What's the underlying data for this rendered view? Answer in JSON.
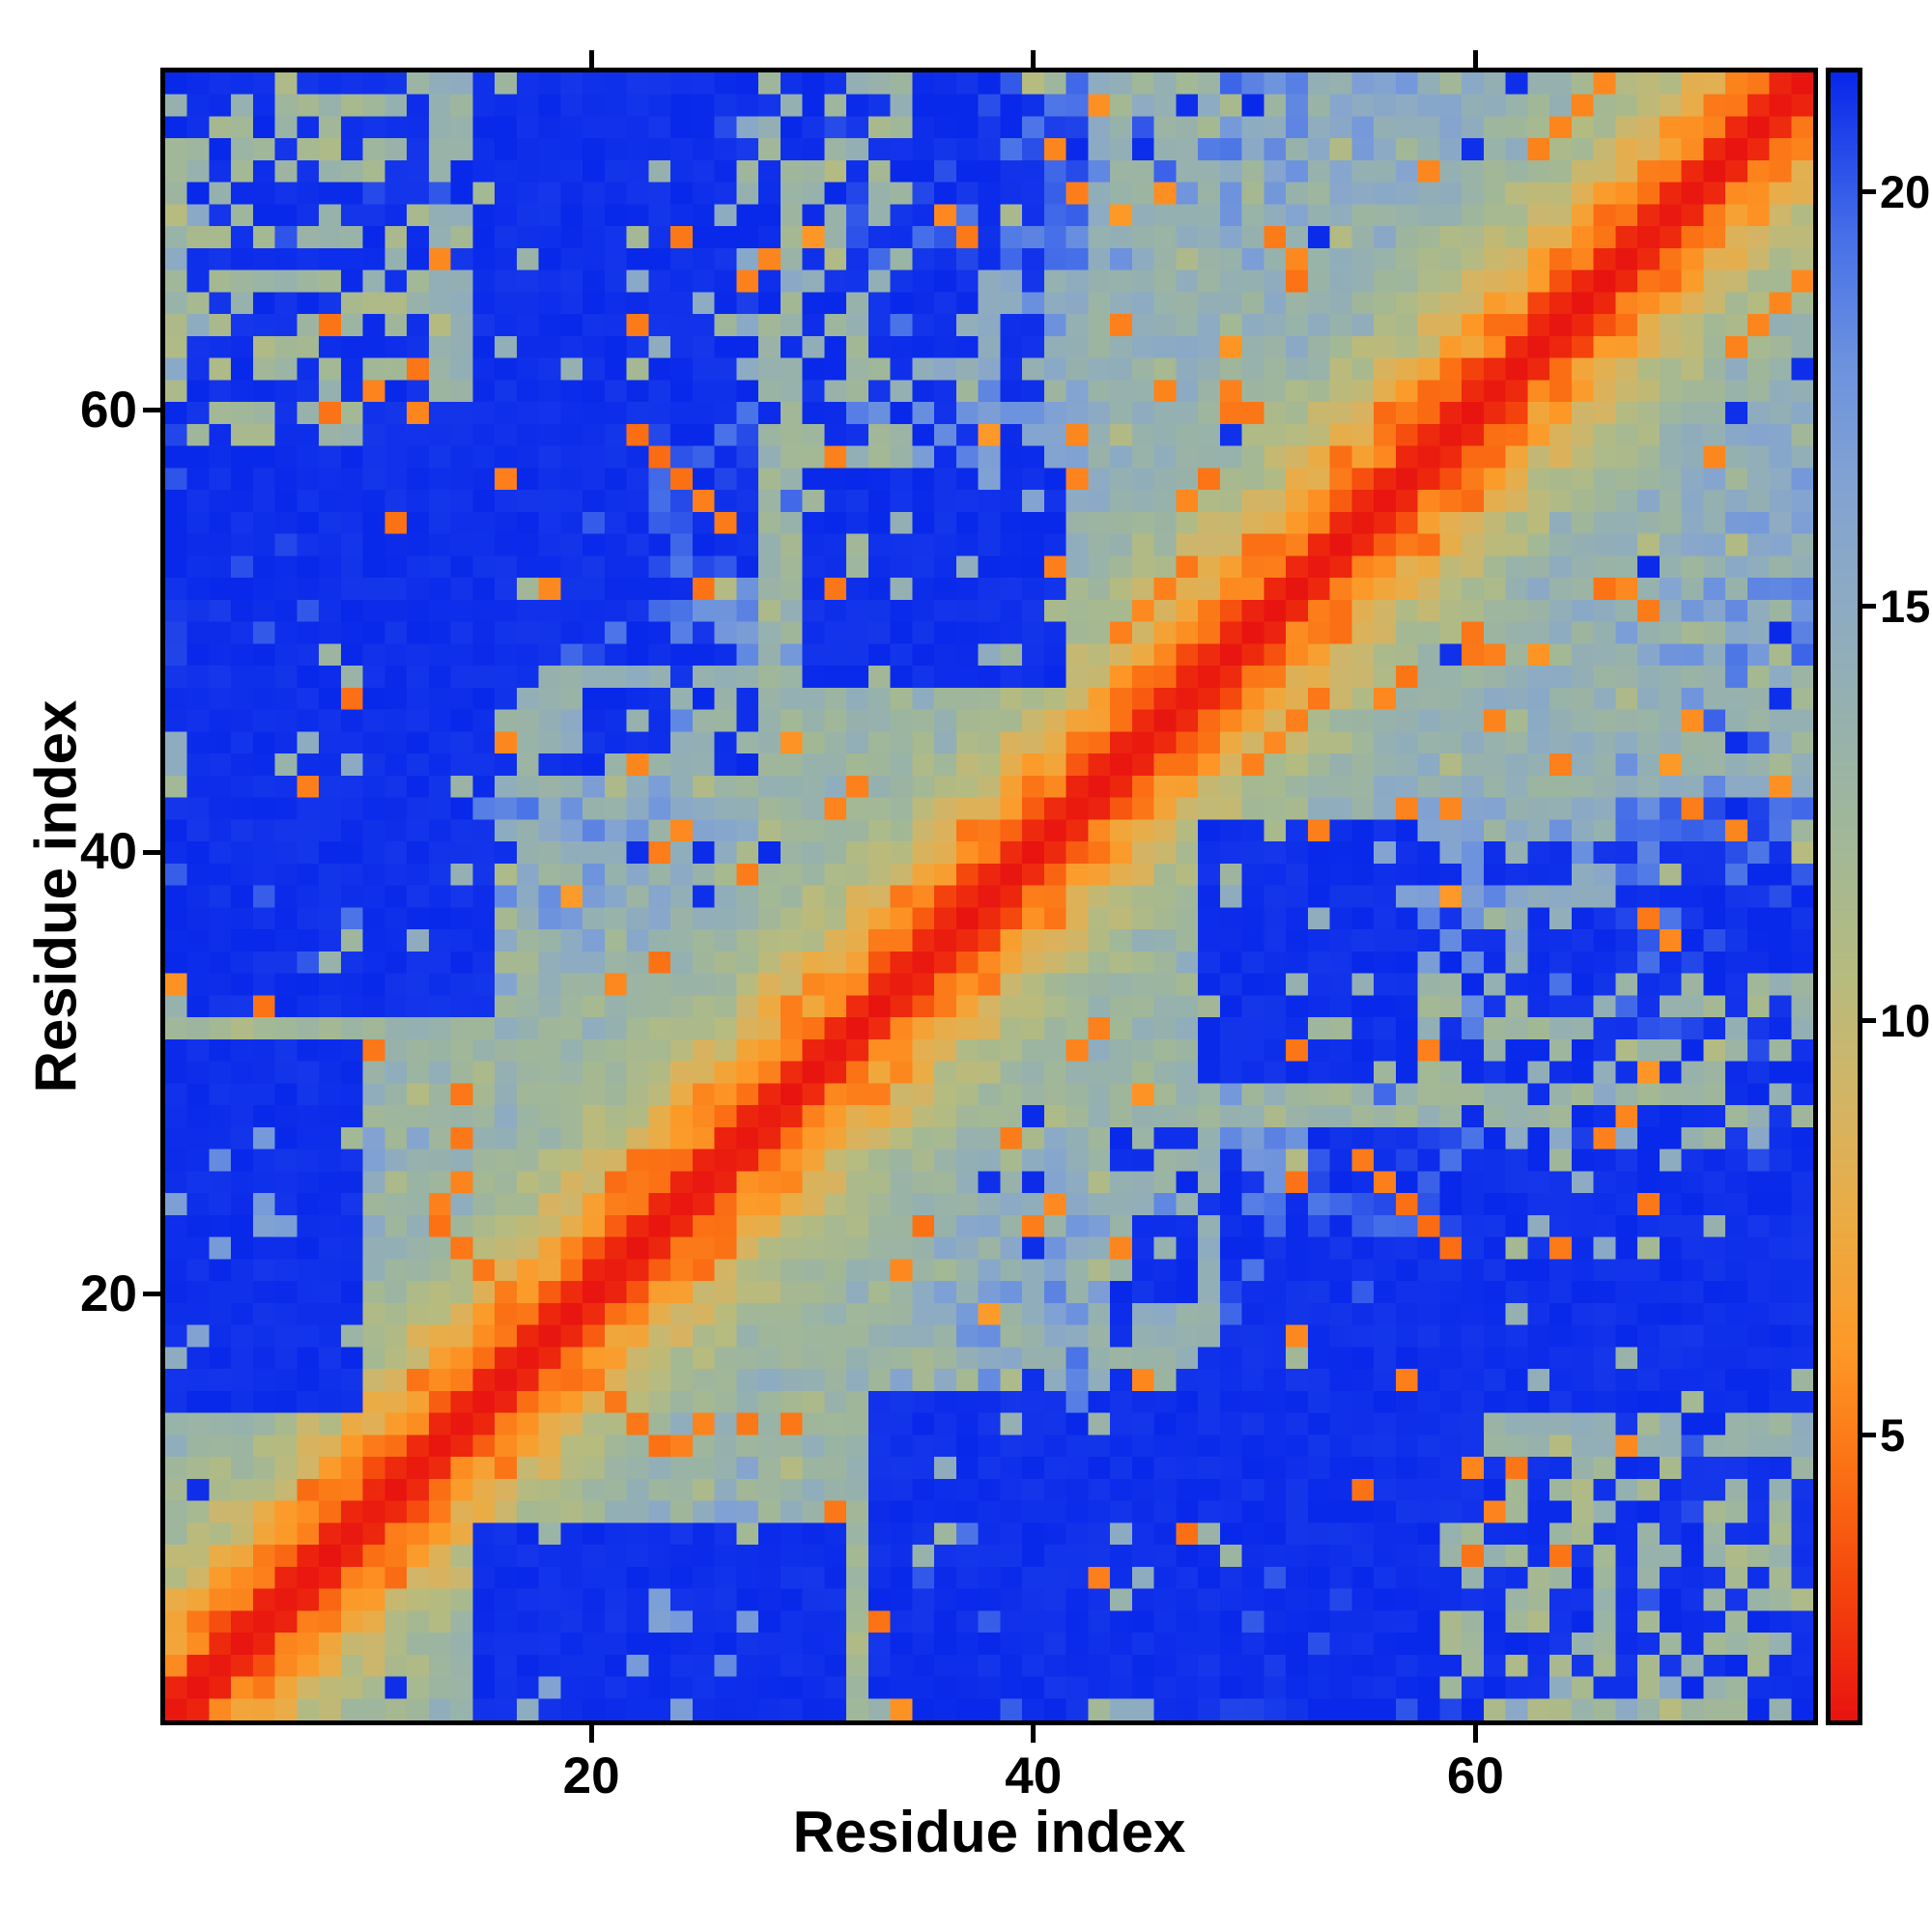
{
  "chart_data": {
    "type": "heatmap",
    "title": "",
    "xlabel": "Residue index",
    "ylabel": "Residue index",
    "n_residues": 75,
    "x_range": [
      1,
      75
    ],
    "y_range": [
      1,
      75
    ],
    "x_ticks": [
      20,
      40,
      60
    ],
    "y_ticks": [
      20,
      40,
      60
    ],
    "grid": false,
    "legend": "colorbar-right",
    "colorbar_ticks": [
      5,
      10,
      15,
      20
    ],
    "value_min": 1.5,
    "value_max": 21.5,
    "colormap_stops": [
      [
        1.5,
        "#e81410"
      ],
      [
        3.0,
        "#f4430c"
      ],
      [
        4.5,
        "#fb7014"
      ],
      [
        6.0,
        "#fd9927"
      ],
      [
        7.5,
        "#ecab43"
      ],
      [
        9.0,
        "#d4b464"
      ],
      [
        10.5,
        "#b7bb7e"
      ],
      [
        12.0,
        "#a3b894"
      ],
      [
        13.5,
        "#97b2ab"
      ],
      [
        15.0,
        "#8dabc2"
      ],
      [
        16.5,
        "#82a3d2"
      ],
      [
        18.0,
        "#6c92de"
      ],
      [
        19.5,
        "#4871e8"
      ],
      [
        21.5,
        "#0828ea"
      ]
    ],
    "diagonal_profile": [
      [
        0,
        1.6
      ],
      [
        1,
        2.1
      ],
      [
        2,
        4.3
      ],
      [
        3,
        5.8
      ],
      [
        4,
        7.2
      ],
      [
        5,
        8.6
      ],
      [
        6,
        9.8
      ],
      [
        7,
        10.8
      ],
      [
        8,
        11.6
      ],
      [
        9,
        12.3
      ],
      [
        10,
        12.9
      ],
      [
        12,
        13.9
      ],
      [
        14,
        14.8
      ],
      [
        16,
        15.6
      ],
      [
        18,
        16.4
      ],
      [
        20,
        17.1
      ],
      [
        23,
        18.1
      ],
      [
        26,
        19.0
      ],
      [
        30,
        20.0
      ],
      [
        34,
        20.8
      ],
      [
        38,
        21.3
      ],
      [
        42,
        21.5
      ]
    ],
    "sage_stripes": [
      [
        28,
        34,
        13.0
      ],
      [
        8,
        14,
        13.6
      ],
      [
        43,
        48,
        14.0
      ],
      [
        62,
        66,
        14.5
      ]
    ],
    "soft_blocks": [
      [
        1,
        12,
        58,
        75,
        12.5,
        0.7
      ],
      [
        1,
        30,
        63,
        75,
        14.5,
        0.35
      ],
      [
        44,
        58,
        59,
        75,
        14.0,
        0.4
      ],
      [
        16,
        27,
        33,
        47,
        14.0,
        0.45
      ]
    ],
    "blue_blocks": [
      [
        2,
        15,
        33,
        58,
        0.9
      ],
      [
        1,
        9,
        15,
        31,
        0.92
      ],
      [
        10,
        22,
        49,
        60,
        0.9
      ],
      [
        30,
        41,
        48,
        57,
        0.85
      ],
      [
        60,
        75,
        15,
        26,
        0.85
      ],
      [
        58,
        75,
        2,
        12,
        0.5
      ],
      [
        44,
        57,
        16,
        27,
        0.4
      ],
      [
        63,
        75,
        28,
        40,
        0.35
      ],
      [
        28,
        40,
        58,
        66,
        0.45
      ],
      [
        36,
        48,
        1,
        8,
        0.75
      ]
    ],
    "orange_segments": [
      [
        22,
        59,
        1,
        -1,
        5,
        4.8
      ],
      [
        13,
        23,
        1,
        -1,
        5,
        5.0
      ],
      [
        44,
        50,
        1,
        1,
        4,
        5.2
      ],
      [
        63,
        72,
        1,
        1,
        4,
        5.0
      ]
    ],
    "orange_spots": [
      [
        8,
        64
      ],
      [
        12,
        62
      ],
      [
        16,
        57
      ],
      [
        22,
        44
      ],
      [
        27,
        39
      ],
      [
        31,
        52
      ],
      [
        35,
        23
      ],
      [
        42,
        31
      ],
      [
        47,
        9
      ],
      [
        52,
        18
      ],
      [
        56,
        47
      ],
      [
        58,
        31
      ],
      [
        61,
        46
      ],
      [
        64,
        22
      ],
      [
        66,
        52
      ],
      [
        69,
        36
      ],
      [
        71,
        58
      ],
      [
        33,
        5
      ],
      [
        25,
        14
      ],
      [
        44,
        64
      ],
      [
        50,
        60
      ],
      [
        55,
        11
      ],
      [
        60,
        8
      ],
      [
        21,
        34
      ],
      [
        37,
        68
      ],
      [
        48,
        57
      ],
      [
        53,
        41
      ],
      [
        67,
        13
      ]
    ],
    "orange_spot_value": 5.0,
    "noise_seed": 20240707,
    "noise_sigma": 1.35
  }
}
